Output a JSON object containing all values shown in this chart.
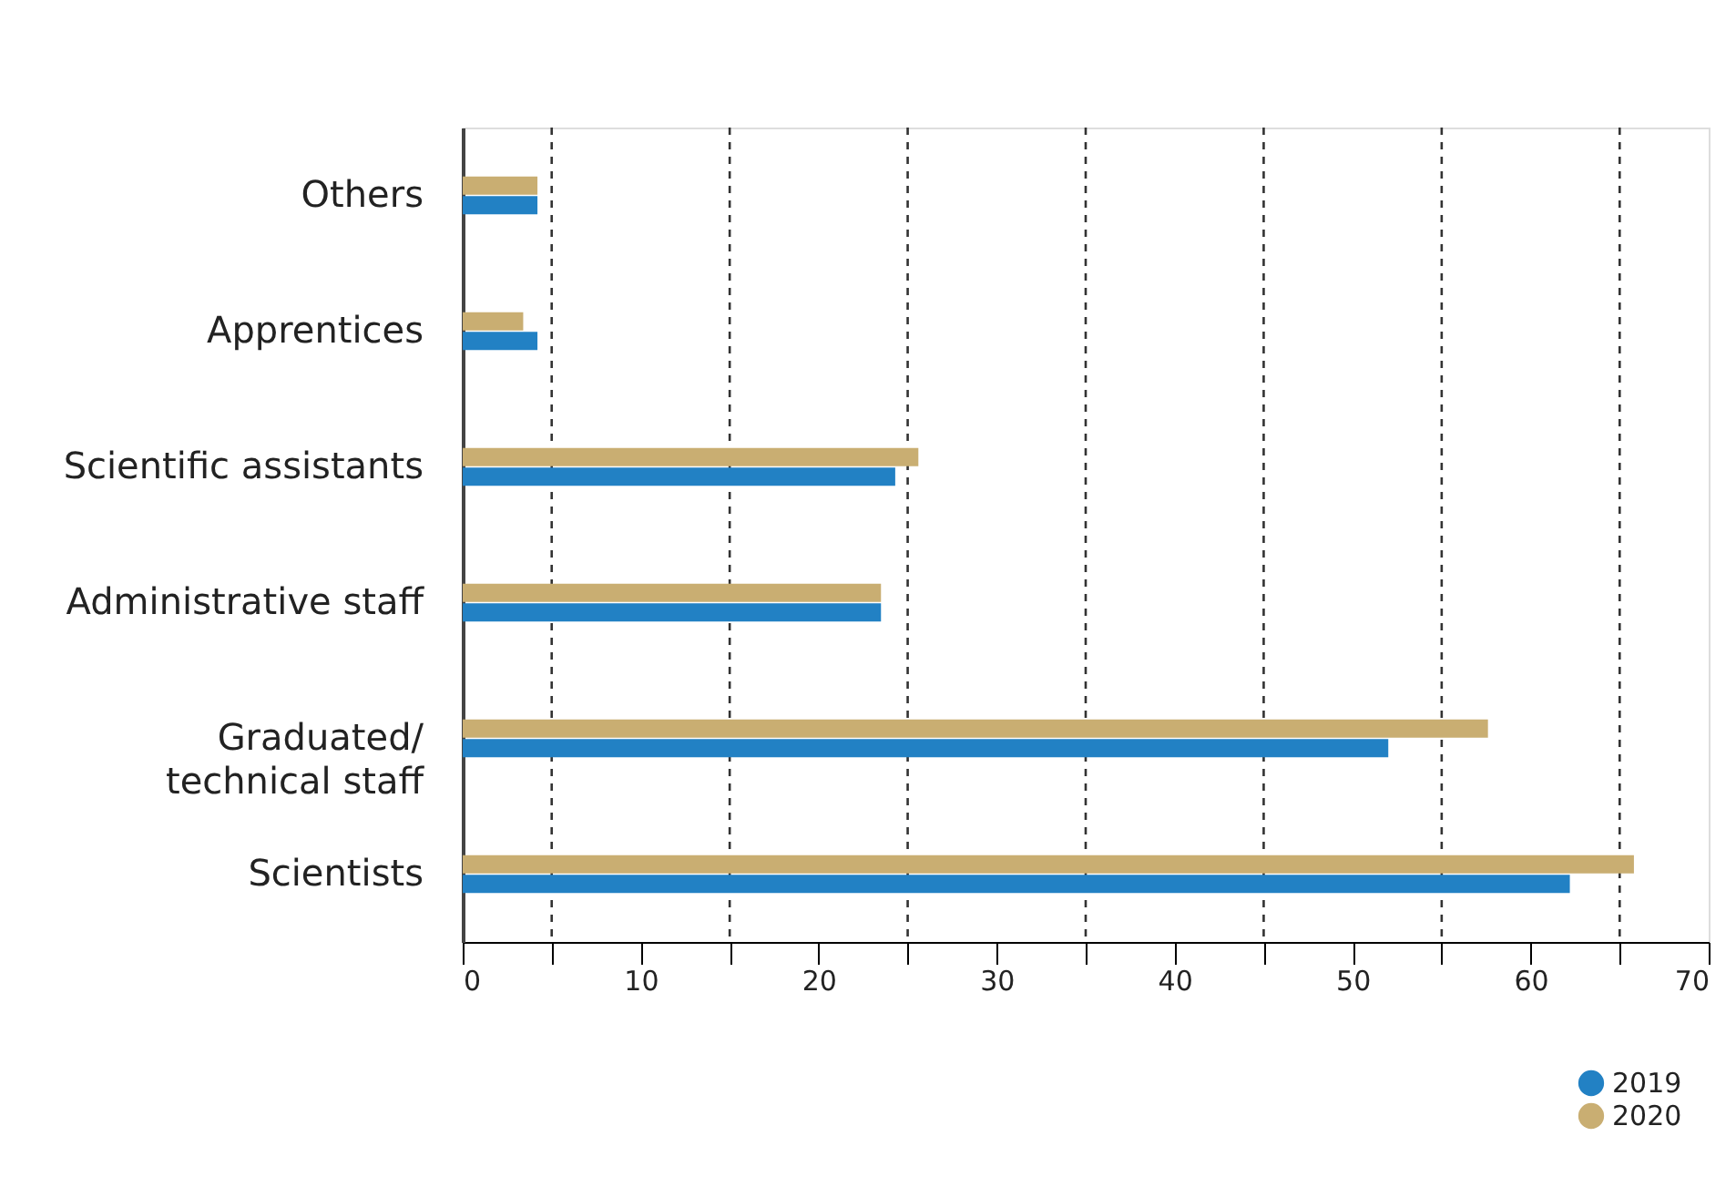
{
  "chart_data": {
    "type": "bar",
    "orientation": "horizontal",
    "categories": [
      "Others",
      "Apprentices",
      "Scientific assistants",
      "Administrative staff",
      "Graduated/\ntechnical staff",
      "Scientists"
    ],
    "series": [
      {
        "name": "2019",
        "color": "#2281c4",
        "values": [
          4.2,
          4.2,
          24.3,
          23.5,
          52.0,
          62.2
        ]
      },
      {
        "name": "2020",
        "color": "#c9ae72",
        "values": [
          4.2,
          3.4,
          25.6,
          23.5,
          57.6,
          65.8
        ]
      }
    ],
    "xlim": [
      0,
      70
    ],
    "xticks": [
      0,
      {
        "value": 5,
        "label": null
      },
      10,
      {
        "value": 15,
        "label": null
      },
      20,
      {
        "value": 25,
        "label": null
      },
      30,
      {
        "value": 35,
        "label": null
      },
      40,
      {
        "value": 45,
        "label": null
      },
      50,
      {
        "value": 55,
        "label": null
      },
      60,
      {
        "value": 65,
        "label": null
      },
      70
    ],
    "ref_lines": [
      {
        "axis": "x",
        "value": 5,
        "line_style": "dashed"
      },
      {
        "axis": "x",
        "value": 15,
        "line_style": "dashed"
      },
      {
        "axis": "x",
        "value": 25,
        "line_style": "dashed"
      },
      {
        "axis": "x",
        "value": 35,
        "line_style": "dashed"
      },
      {
        "axis": "x",
        "value": 45,
        "line_style": "dashed"
      },
      {
        "axis": "x",
        "value": 55,
        "line_style": "dashed"
      },
      {
        "axis": "x",
        "value": 65,
        "line_style": "dashed"
      }
    ],
    "grid": false,
    "legend": "bottom right",
    "marker": "circle"
  }
}
